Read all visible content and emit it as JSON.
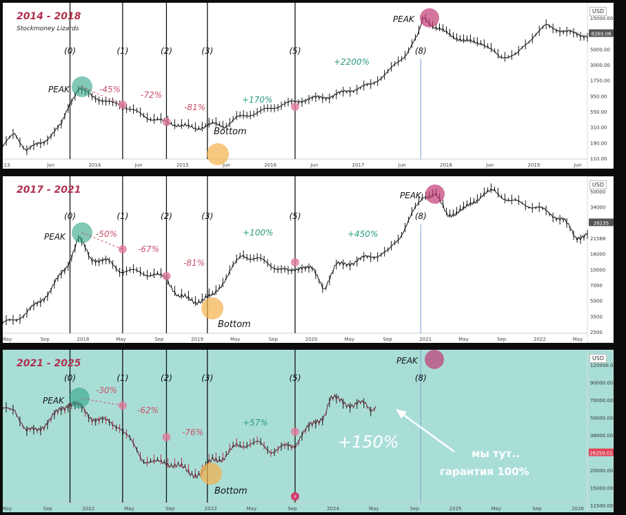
{
  "chart_data": [
    {
      "type": "line",
      "title": "2014 - 2018",
      "subtitle": "Stockmoney Lizards",
      "currency": "USD",
      "y_scale": "log",
      "ylim": [
        85,
        20000
      ],
      "y_ticks": [
        "15000.00",
        "8269.06",
        "5000.00",
        "3000.00",
        "1750.00",
        "950.00",
        "550.00",
        "310.00",
        "190.00",
        "110.00"
      ],
      "price_label": "8269.06",
      "x_ticks": [
        "13",
        "Jun",
        "2014",
        "Jun",
        "2015",
        "Jun",
        "2016",
        "Jun",
        "2017",
        "Jun",
        "2018",
        "Jun",
        "2019",
        "Jun"
      ],
      "series": [
        {
          "values": [
            [
              0,
              110
            ],
            [
              0.02,
              180
            ],
            [
              0.04,
              95
            ],
            [
              0.07,
              130
            ],
            [
              0.1,
              250
            ],
            [
              0.115,
              600
            ],
            [
              0.13,
              1050
            ],
            [
              0.15,
              800
            ],
            [
              0.18,
              600
            ],
            [
              0.2,
              560
            ],
            [
              0.25,
              330
            ],
            [
              0.28,
              280
            ],
            [
              0.31,
              240
            ],
            [
              0.33,
              220
            ],
            [
              0.36,
              260
            ],
            [
              0.38,
              240
            ],
            [
              0.4,
              330
            ],
            [
              0.44,
              420
            ],
            [
              0.48,
              560
            ],
            [
              0.52,
              680
            ],
            [
              0.56,
              760
            ],
            [
              0.6,
              1000
            ],
            [
              0.63,
              1200
            ],
            [
              0.66,
              2000
            ],
            [
              0.69,
              4000
            ],
            [
              0.71,
              8000
            ],
            [
              0.72,
              17000
            ],
            [
              0.74,
              11000
            ],
            [
              0.76,
              9000
            ],
            [
              0.79,
              6500
            ],
            [
              0.82,
              6200
            ],
            [
              0.85,
              3500
            ],
            [
              0.88,
              3900
            ],
            [
              0.91,
              8500
            ],
            [
              0.93,
              12000
            ],
            [
              0.96,
              9500
            ],
            [
              1,
              8000
            ]
          ]
        }
      ],
      "markers": [
        {
          "label": "(0)",
          "x": 0.115
        },
        {
          "label": "(1)",
          "x": 0.205
        },
        {
          "label": "(2)",
          "x": 0.28
        },
        {
          "label": "(3)",
          "x": 0.35
        },
        {
          "label": "(5)",
          "x": 0.5
        },
        {
          "label": "(8)",
          "x": 0.715
        }
      ],
      "annotations": [
        {
          "text": "PEAK",
          "kind": "peak"
        },
        {
          "text": "-45%",
          "kind": "drop"
        },
        {
          "text": "-72%",
          "kind": "drop"
        },
        {
          "text": "-81%",
          "kind": "drop"
        },
        {
          "text": "Bottom",
          "kind": "bottom"
        },
        {
          "text": "+170%",
          "kind": "gain"
        },
        {
          "text": "+2200%",
          "kind": "gain"
        },
        {
          "text": "PEAK",
          "kind": "peak2"
        }
      ]
    },
    {
      "type": "line",
      "title": "2017 - 2021",
      "currency": "USD",
      "y_scale": "log",
      "ylim": [
        1800,
        75000
      ],
      "y_ticks": [
        "50000",
        "34000",
        "26235",
        "21588",
        "16000",
        "10000",
        "7000",
        "5000",
        "3500",
        "2500"
      ],
      "price_label": "26235",
      "x_ticks": [
        "May",
        "Sep",
        "2018",
        "May",
        "Sep",
        "2019",
        "May",
        "Sep",
        "2020",
        "May",
        "Sep",
        "2021",
        "May",
        "Sep",
        "2022",
        "May"
      ],
      "series": [
        {
          "values": [
            [
              0,
              1900
            ],
            [
              0.04,
              2500
            ],
            [
              0.08,
              4500
            ],
            [
              0.11,
              9000
            ],
            [
              0.13,
              19000
            ],
            [
              0.15,
              11000
            ],
            [
              0.18,
              10000
            ],
            [
              0.2,
              8000
            ],
            [
              0.24,
              7500
            ],
            [
              0.28,
              6500
            ],
            [
              0.3,
              4000
            ],
            [
              0.33,
              3500
            ],
            [
              0.36,
              4000
            ],
            [
              0.39,
              8000
            ],
            [
              0.41,
              12000
            ],
            [
              0.44,
              10500
            ],
            [
              0.47,
              8500
            ],
            [
              0.49,
              7500
            ],
            [
              0.51,
              9000
            ],
            [
              0.53,
              8000
            ],
            [
              0.55,
              5000
            ],
            [
              0.57,
              9000
            ],
            [
              0.6,
              10000
            ],
            [
              0.63,
              11500
            ],
            [
              0.66,
              13000
            ],
            [
              0.68,
              20000
            ],
            [
              0.7,
              35000
            ],
            [
              0.72,
              58000
            ],
            [
              0.74,
              60000
            ],
            [
              0.76,
              35000
            ],
            [
              0.79,
              40000
            ],
            [
              0.82,
              60000
            ],
            [
              0.84,
              65000
            ],
            [
              0.87,
              50000
            ],
            [
              0.9,
              45000
            ],
            [
              0.93,
              38000
            ],
            [
              0.96,
              30000
            ],
            [
              0.98,
              19000
            ],
            [
              1,
              21000
            ]
          ]
        }
      ],
      "markers": [
        {
          "label": "(0)",
          "x": 0.115
        },
        {
          "label": "(1)",
          "x": 0.205
        },
        {
          "label": "(2)",
          "x": 0.28
        },
        {
          "label": "(3)",
          "x": 0.35
        },
        {
          "label": "(5)",
          "x": 0.5
        },
        {
          "label": "(8)",
          "x": 0.715
        }
      ],
      "annotations": [
        {
          "text": "PEAK",
          "kind": "peak"
        },
        {
          "text": "-50%",
          "kind": "drop"
        },
        {
          "text": "-67%",
          "kind": "drop"
        },
        {
          "text": "-81%",
          "kind": "drop"
        },
        {
          "text": "Bottom",
          "kind": "bottom"
        },
        {
          "text": "+100%",
          "kind": "gain"
        },
        {
          "text": "+450%",
          "kind": "gain"
        },
        {
          "text": "PEAK",
          "kind": "peak2"
        }
      ]
    },
    {
      "type": "line",
      "title": "2021 - 2025",
      "currency": "USD",
      "y_scale": "log",
      "ylim": [
        10000,
        150000
      ],
      "y_ticks": [
        "120000.00",
        "90000.00",
        "70000.00",
        "50000.00",
        "38000.00",
        "26250.01",
        "20000.00",
        "15000.00",
        "11500.00"
      ],
      "price_label": "26250.01",
      "x_ticks": [
        "May",
        "Sep",
        "2022",
        "May",
        "Sep",
        "2023",
        "May",
        "Sep",
        "2024",
        "May",
        "Sep",
        "2025",
        "May",
        "Sep",
        "2026"
      ],
      "series": [
        {
          "values": [
            [
              0,
              55000
            ],
            [
              0.02,
              60000
            ],
            [
              0.04,
              36000
            ],
            [
              0.06,
              40000
            ],
            [
              0.08,
              45000
            ],
            [
              0.1,
              58000
            ],
            [
              0.115,
              66000
            ],
            [
              0.13,
              60000
            ],
            [
              0.15,
              50000
            ],
            [
              0.18,
              44000
            ],
            [
              0.2,
              42000
            ],
            [
              0.22,
              30000
            ],
            [
              0.24,
              22000
            ],
            [
              0.26,
              20000
            ],
            [
              0.28,
              21000
            ],
            [
              0.3,
              19000
            ],
            [
              0.32,
              17000
            ],
            [
              0.34,
              16500
            ],
            [
              0.36,
              22000
            ],
            [
              0.38,
              23000
            ],
            [
              0.4,
              28000
            ],
            [
              0.42,
              30000
            ],
            [
              0.44,
              29000
            ],
            [
              0.46,
              26000
            ],
            [
              0.48,
              27000
            ],
            [
              0.5,
              29000
            ],
            [
              0.51,
              35000
            ],
            [
              0.53,
              42000
            ],
            [
              0.55,
              52000
            ],
            [
              0.56,
              69000
            ],
            [
              0.58,
              68000
            ],
            [
              0.6,
              62000
            ],
            [
              0.62,
              63000
            ],
            [
              0.63,
              58000
            ],
            [
              0.64,
              64000
            ]
          ]
        }
      ],
      "markers": [
        {
          "label": "(0)",
          "x": 0.115
        },
        {
          "label": "(1)",
          "x": 0.205
        },
        {
          "label": "(2)",
          "x": 0.28
        },
        {
          "label": "(3)",
          "x": 0.35
        },
        {
          "label": "(5)",
          "x": 0.5
        },
        {
          "label": "(8)",
          "x": 0.715
        }
      ],
      "annotations": [
        {
          "text": "PEAK",
          "kind": "peak"
        },
        {
          "text": "-30%",
          "kind": "drop"
        },
        {
          "text": "-62%",
          "kind": "drop"
        },
        {
          "text": "-76%",
          "kind": "drop"
        },
        {
          "text": "Bottom",
          "kind": "bottom"
        },
        {
          "text": "+57%",
          "kind": "gain"
        },
        {
          "text": "+150%",
          "kind": "bigwhite"
        },
        {
          "text": "PEAK",
          "kind": "peak2"
        },
        {
          "text": "мы тут..",
          "kind": "note"
        },
        {
          "text": "гарантия 100%",
          "kind": "note"
        }
      ]
    }
  ],
  "colors": {
    "peak": "#2fa386",
    "peak2": "#c23a73",
    "drop": "#c8506a",
    "gain": "#2a9a80",
    "bottom": "#f3b04a",
    "candle": "#111111",
    "panel3_bg": "#a9ded6",
    "price_tag": "#e04355"
  }
}
